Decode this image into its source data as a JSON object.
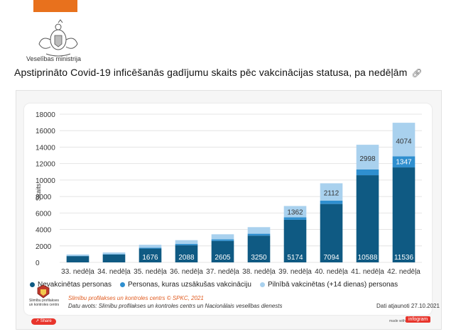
{
  "header": {
    "ministry_name": "Veselības ministrija",
    "page_title": "Apstiprināto Covid-19 inficēšanās gadījumu skaits pēc vakcinācijas statusa, pa nedēļām",
    "link_icon": "link-icon"
  },
  "colors": {
    "unvaccinated": "#0f5a83",
    "started": "#2f8fcf",
    "fully": "#a9d1ee",
    "accent": "#e8711d",
    "infogram": "#e8352c"
  },
  "chart_data": {
    "type": "bar",
    "stacked": true,
    "categories": [
      "33. nedēļa",
      "34. nedēļa",
      "35. nedēļa",
      "36. nedēļa",
      "37. nedēļa",
      "38. nedēļa",
      "39. nedēļa",
      "40. nedēļa",
      "41. nedēļa",
      "42. nedēļa"
    ],
    "series": [
      {
        "name": "Nevakcinētas personas",
        "values": [
          760,
          960,
          1676,
          2088,
          2605,
          3250,
          5174,
          7094,
          10588,
          11536
        ]
      },
      {
        "name": "Personas, kuras uzsākušas vakcināciju",
        "values": [
          40,
          50,
          110,
          150,
          190,
          230,
          310,
          400,
          700,
          1347
        ]
      },
      {
        "name": "Pilnībā vakcinētas (+14 dienas) personas",
        "values": [
          160,
          200,
          350,
          460,
          620,
          800,
          1362,
          2112,
          2998,
          4074
        ]
      }
    ],
    "labels": {
      "bottom": [
        "",
        "",
        "1676",
        "2088",
        "2605",
        "3250",
        "5174",
        "7094",
        "10588",
        "11536"
      ],
      "middle": [
        "",
        "",
        "",
        "",
        "",
        "",
        "",
        "",
        "",
        "1347"
      ],
      "top": [
        "",
        "",
        "",
        "",
        "",
        "",
        "1362",
        "2112",
        "2998",
        "4074"
      ]
    },
    "yticks": [
      "0",
      "2000",
      "4000",
      "6000",
      "8000",
      "10000",
      "12000",
      "14000",
      "16000",
      "18000"
    ],
    "ylabel": "Skaits",
    "ylim": [
      0,
      18000
    ],
    "grid": true,
    "legend_position": "bottom-left"
  },
  "footer": {
    "org_name": "Slimību profilakses un kontroles centrs",
    "source_line1": "Slimību profilakses un kontroles centrs © SPKC, 2021",
    "source_line2": "Datu avots: Slimību profilakses un kontroles centrs un Nacionālais veselības dienests",
    "updated": "Dati atjaunoti 27.10.2021"
  },
  "bottom_bar": {
    "share_label": "Share",
    "made_with": "made with",
    "infogram_label": "infogram"
  }
}
